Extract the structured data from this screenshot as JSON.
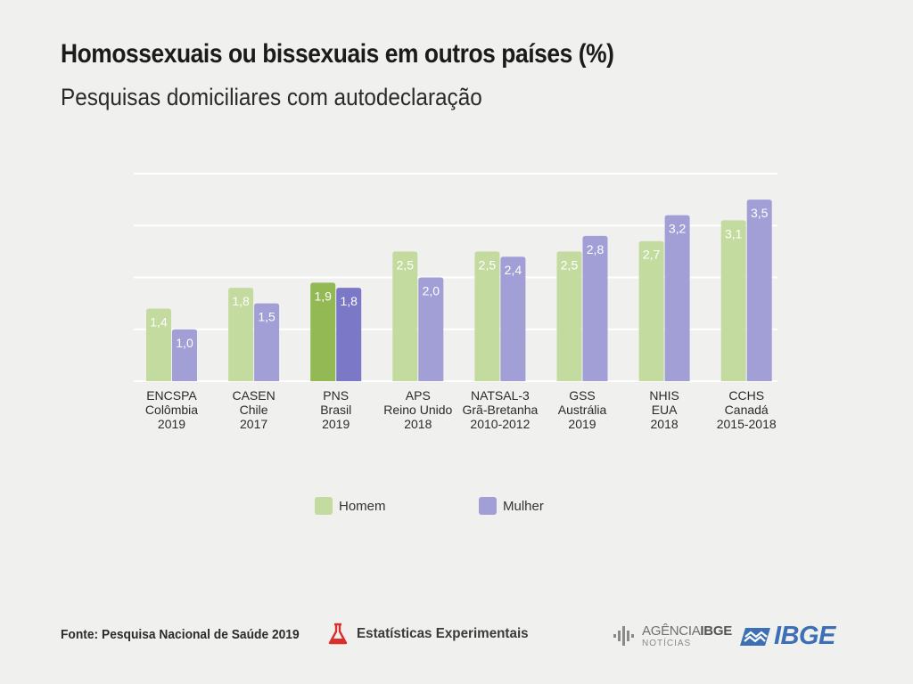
{
  "header": {
    "title": "Homossexuais ou bissexuais em outros países (%)",
    "subtitle": "Pesquisas domiciliares com autodeclaração"
  },
  "colors": {
    "homem": "#c4dba0",
    "mulher": "#a29fd6",
    "homem_highlight": "#93b955",
    "mulher_highlight": "#7c78c8",
    "grid": "#ffffff",
    "background": "#f0f0ef"
  },
  "chart_data": {
    "type": "bar",
    "categories": [
      [
        "ENCSPA",
        "Colômbia",
        "2019"
      ],
      [
        "CASEN",
        "Chile",
        "2017"
      ],
      [
        "PNS",
        "Brasil",
        "2019"
      ],
      [
        "APS",
        "Reino Unido",
        "2018"
      ],
      [
        "NATSAL-3",
        "Grã-Bretanha",
        "2010-2012"
      ],
      [
        "GSS",
        "Austrália",
        "2019"
      ],
      [
        "NHIS",
        "EUA",
        "2018"
      ],
      [
        "CCHS",
        "Canadá",
        "2015-2018"
      ]
    ],
    "series": [
      {
        "name": "Homem",
        "values": [
          1.4,
          1.8,
          1.9,
          2.5,
          2.5,
          2.5,
          2.7,
          3.1
        ],
        "labels": [
          "1,4",
          "1,8",
          "1,9",
          "2,5",
          "2,5",
          "2,5",
          "2,7",
          "3,1"
        ]
      },
      {
        "name": "Mulher",
        "values": [
          1.0,
          1.5,
          1.8,
          2.0,
          2.4,
          2.8,
          3.2,
          3.5
        ],
        "labels": [
          "1,0",
          "1,5",
          "1,8",
          "2,0",
          "2,4",
          "2,8",
          "3,2",
          "3,5"
        ]
      }
    ],
    "highlight_category": 2,
    "ylim": [
      0,
      4
    ],
    "gridlines": [
      1,
      2,
      3,
      4
    ],
    "grid": true,
    "legend_position": "bottom-center"
  },
  "legend": {
    "homem": "Homem",
    "mulher": "Mulher"
  },
  "footer": {
    "source": "Fonte: Pesquisa Nacional de Saúde 2019",
    "experimental": "Estatísticas Experimentais",
    "agencia_prefix": "AGÊNCIA",
    "agencia_bold": "IBGE",
    "agencia_sub": "NOTÍCIAS",
    "ibge": "IBGE"
  }
}
